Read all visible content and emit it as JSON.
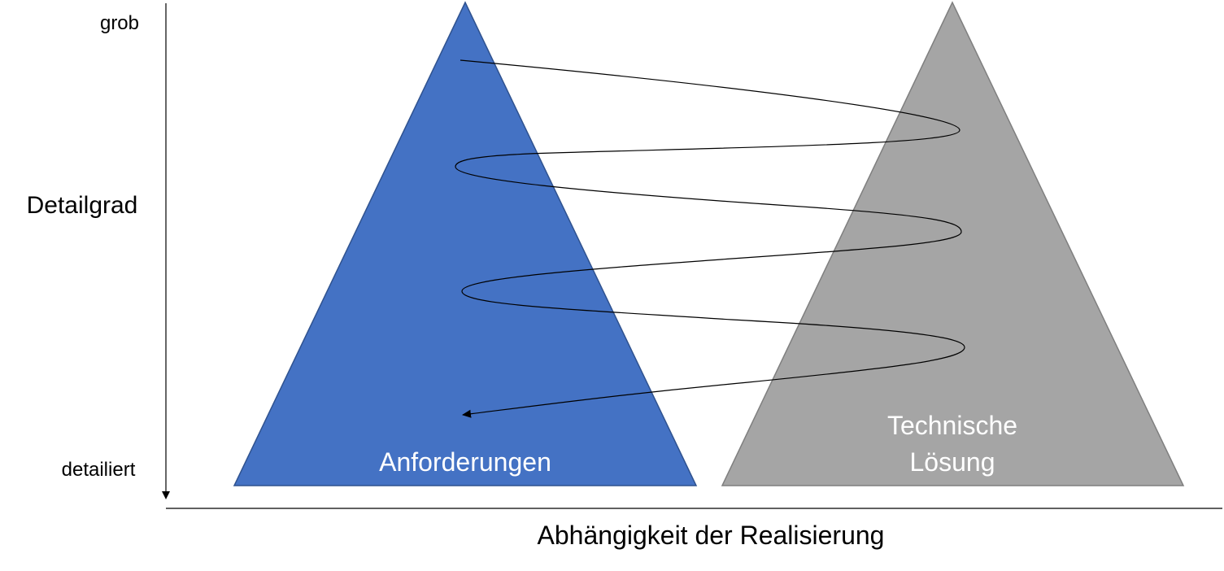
{
  "axis": {
    "y_label": "Detailgrad",
    "y_top": "grob",
    "y_bottom": "detailiert",
    "x_label": "Abhängigkeit der Realisierung"
  },
  "triangles": {
    "left": {
      "lines": [
        "Anforderungen"
      ]
    },
    "right": {
      "lines": [
        "Technische",
        "Lösung"
      ]
    }
  },
  "colors": {
    "left_fill": "#4472c4",
    "left_stroke": "#2f528f",
    "right_fill": "#a5a5a5",
    "right_stroke": "#7f7f7f",
    "axis": "#000000",
    "spiral": "#000000"
  }
}
